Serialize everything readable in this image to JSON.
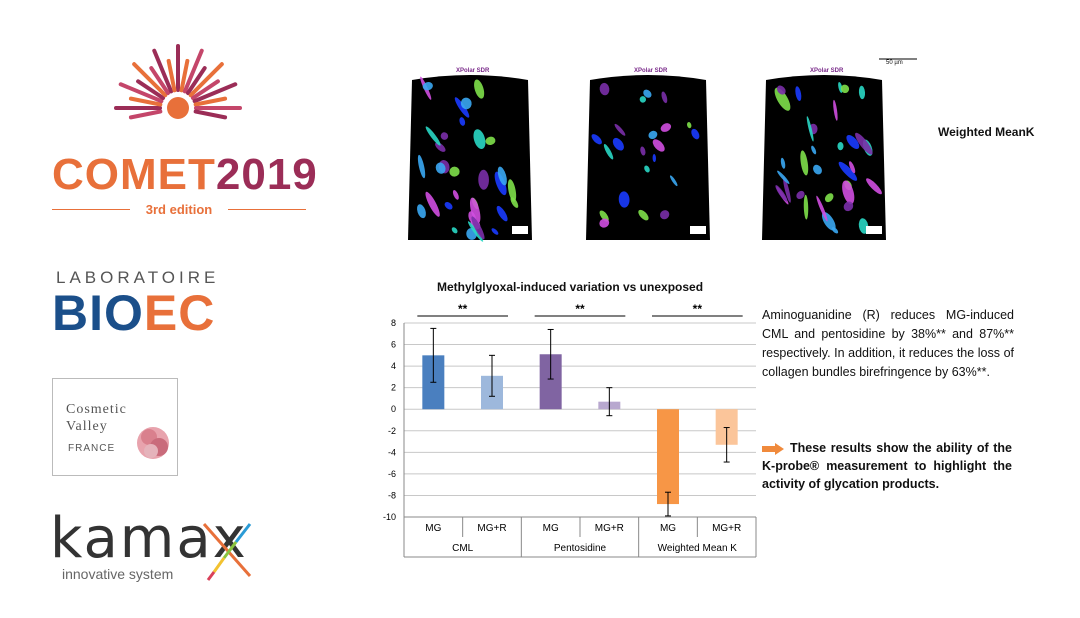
{
  "logos": {
    "comet": {
      "title_part1": "COMET",
      "title_part2": "2019",
      "edition": "3rd edition",
      "colors": {
        "orange": "#e8703a",
        "plum": "#9b2d57"
      }
    },
    "bioec": {
      "top": "LABORATOIRE",
      "main_part1": "BIO",
      "main_part2": "EC",
      "colors": {
        "blue": "#1b4f8a",
        "orange": "#e8703a"
      }
    },
    "cosmetic_valley": {
      "line1": "Cosmetic",
      "line2": "Valley",
      "line3": "FRANCE"
    },
    "kamax": {
      "name": "kamax",
      "tagline": "innovative system"
    }
  },
  "microscopy": {
    "panel_header": "XPolar SDR",
    "scale": "50 µm",
    "side_label": "Weighted MeanK"
  },
  "chart_data": {
    "type": "bar",
    "title": "Methylglyoxal-induced variation vs unexposed",
    "ylim": [
      -10,
      8
    ],
    "yticks": [
      8,
      6,
      4,
      2,
      0,
      -2,
      -4,
      -6,
      -8,
      -10
    ],
    "grid": true,
    "groups": [
      "CML",
      "Pentosidine",
      "Weighted Mean K"
    ],
    "categories": [
      "MG",
      "MG+R",
      "MG",
      "MG+R",
      "MG",
      "MG+R"
    ],
    "values": [
      5.0,
      3.1,
      5.1,
      0.7,
      -8.8,
      -3.3
    ],
    "errors": [
      2.5,
      1.9,
      2.3,
      1.3,
      1.1,
      1.6
    ],
    "colors": [
      "#4a7fbf",
      "#9db8dc",
      "#8064a2",
      "#b8a8cf",
      "#f79646",
      "#fbc59a"
    ],
    "significance": [
      "**",
      "**",
      "**"
    ]
  },
  "text": {
    "description": "Aminoguanidine (R) reduces MG-induced CML and pentosidine by 38%** and 87%** respectively. In addition, it reduces the loss of collagen bundles birefringence by 63%**.",
    "conclusion": "These results show the ability of the K-probe® measurement to highlight the activity of glycation products.",
    "arrow_color": "#f08a3c"
  }
}
